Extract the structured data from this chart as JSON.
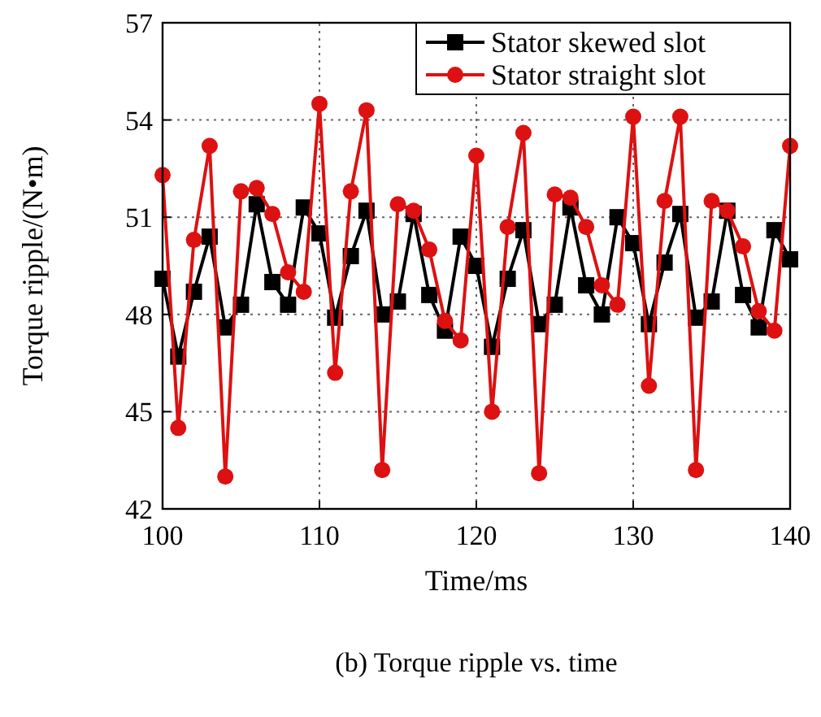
{
  "chart_data": {
    "type": "line",
    "xlabel": "Time/ms",
    "ylabel": "Torque ripple/(N•m)",
    "annotations": [
      "(b) Torque ripple vs. time"
    ],
    "x": [
      100,
      101,
      102,
      103,
      104,
      105,
      106,
      107,
      108,
      109,
      110,
      111,
      112,
      113,
      114,
      115,
      116,
      117,
      118,
      119,
      120,
      121,
      122,
      123,
      124,
      125,
      126,
      127,
      128,
      129,
      130,
      131,
      132,
      133,
      134,
      135,
      136,
      137,
      138,
      139,
      140
    ],
    "series": [
      {
        "name": "Stator skewed slot",
        "color": "#000000",
        "marker": "square",
        "values": [
          49.1,
          46.7,
          48.7,
          50.4,
          47.6,
          48.3,
          51.4,
          49.0,
          48.3,
          51.3,
          50.5,
          47.9,
          49.8,
          51.2,
          48.0,
          48.4,
          51.1,
          48.6,
          47.5,
          50.4,
          49.5,
          47.0,
          49.1,
          50.6,
          47.7,
          48.3,
          51.3,
          48.9,
          48.0,
          51.0,
          50.2,
          47.7,
          49.6,
          51.1,
          47.9,
          48.4,
          51.2,
          48.6,
          47.6,
          50.6,
          49.7
        ]
      },
      {
        "name": "Stator straight slot",
        "color": "#dd1111",
        "marker": "circle",
        "values": [
          52.3,
          44.5,
          50.3,
          53.2,
          43.0,
          51.8,
          51.9,
          51.1,
          49.3,
          48.7,
          54.5,
          46.2,
          51.8,
          54.3,
          43.2,
          51.4,
          51.2,
          50.0,
          47.8,
          47.2,
          52.9,
          45.0,
          50.7,
          53.6,
          43.1,
          51.7,
          51.6,
          50.7,
          48.9,
          48.3,
          54.1,
          45.8,
          51.5,
          54.1,
          43.2,
          51.5,
          51.2,
          50.1,
          48.1,
          47.5,
          53.2
        ]
      }
    ],
    "xlim": [
      100,
      140
    ],
    "xticks": [
      100,
      110,
      120,
      130,
      140
    ],
    "ylim": [
      42,
      57
    ],
    "yticks": [
      42,
      45,
      48,
      51,
      54,
      57
    ],
    "grid": true,
    "legend": "top right",
    "line_style": "solid"
  }
}
